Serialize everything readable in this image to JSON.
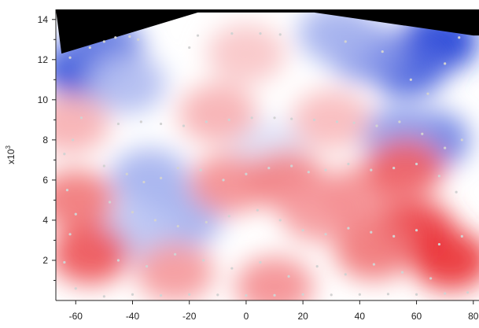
{
  "chart_data": {
    "type": "heatmap",
    "subtype": "interpolated contour map with scattered sample points",
    "title": "",
    "xlabel": "",
    "ylabel": "x10^3",
    "ylabel_parts": {
      "base": "x10",
      "exponent": "3"
    },
    "xlim": [
      -67,
      82
    ],
    "ylim": [
      0,
      14500
    ],
    "x_ticks": [
      -60,
      -40,
      -20,
      0,
      20,
      40,
      60,
      80
    ],
    "x_tick_labels": [
      "-60",
      "-40",
      "-20",
      "0",
      "20",
      "40",
      "60",
      "80"
    ],
    "y_ticks": [
      2000,
      4000,
      6000,
      8000,
      10000,
      12000,
      14000
    ],
    "y_tick_labels": [
      "2",
      "4",
      "6",
      "8",
      "10",
      "12",
      "14"
    ],
    "grid": false,
    "legend": "none",
    "colorscale": {
      "negative": "#1f3fd6",
      "zero": "#ffffff",
      "positive": "#e81c22"
    },
    "mask_color": "#000000",
    "mask_outside_hull": [
      [
        -65,
        12300
      ],
      [
        -17,
        14350
      ],
      [
        24,
        14350
      ],
      [
        80,
        13200
      ]
    ],
    "field_centers": [
      {
        "x": -58,
        "y": 11500,
        "value": -0.9
      },
      {
        "x": -50,
        "y": 12600,
        "value": -0.7
      },
      {
        "x": -42,
        "y": 10800,
        "value": -0.35
      },
      {
        "x": 68,
        "y": 12900,
        "value": -1.0
      },
      {
        "x": 57,
        "y": 11600,
        "value": -0.8
      },
      {
        "x": 42,
        "y": 12400,
        "value": -0.55
      },
      {
        "x": 32,
        "y": 13300,
        "value": -0.4
      },
      {
        "x": 65,
        "y": 8000,
        "value": -0.65
      },
      {
        "x": 54,
        "y": 8200,
        "value": -0.5
      },
      {
        "x": -34,
        "y": 6100,
        "value": -0.4
      },
      {
        "x": -22,
        "y": 4100,
        "value": -0.4
      },
      {
        "x": -38,
        "y": 3400,
        "value": -0.3
      },
      {
        "x": 8,
        "y": 7500,
        "value": -0.15
      },
      {
        "x": -62,
        "y": 8800,
        "value": 0.35
      },
      {
        "x": -60,
        "y": 5000,
        "value": 0.6
      },
      {
        "x": -55,
        "y": 2300,
        "value": 0.75
      },
      {
        "x": -25,
        "y": 1400,
        "value": 0.45
      },
      {
        "x": 0,
        "y": 12300,
        "value": 0.25
      },
      {
        "x": -6,
        "y": 5800,
        "value": 0.5
      },
      {
        "x": 14,
        "y": 6000,
        "value": 0.55
      },
      {
        "x": 26,
        "y": 4400,
        "value": 0.45
      },
      {
        "x": 40,
        "y": 5200,
        "value": 0.5
      },
      {
        "x": 56,
        "y": 6600,
        "value": 0.7
      },
      {
        "x": 60,
        "y": 3500,
        "value": 0.85
      },
      {
        "x": 72,
        "y": 2000,
        "value": 0.9
      },
      {
        "x": 45,
        "y": 2500,
        "value": 0.6
      },
      {
        "x": 10,
        "y": 700,
        "value": 0.5
      },
      {
        "x": 30,
        "y": 9000,
        "value": 0.3
      },
      {
        "x": -10,
        "y": 9300,
        "value": 0.35
      }
    ],
    "sample_points": {
      "marker_color": "#d2d2d2",
      "points": [
        [
          -62,
          12100
        ],
        [
          -55,
          12600
        ],
        [
          -50,
          12900
        ],
        [
          -46,
          13100
        ],
        [
          -41,
          13150
        ],
        [
          -38,
          13000
        ],
        [
          -58,
          9100
        ],
        [
          -61,
          8000
        ],
        [
          -64,
          7300
        ],
        [
          -63,
          5500
        ],
        [
          -60,
          4300
        ],
        [
          -62,
          3300
        ],
        [
          -64,
          1900
        ],
        [
          -60,
          600
        ],
        [
          -50,
          200
        ],
        [
          -40,
          300
        ],
        [
          -30,
          250
        ],
        [
          -20,
          300
        ],
        [
          -10,
          280
        ],
        [
          0,
          250
        ],
        [
          10,
          260
        ],
        [
          20,
          300
        ],
        [
          30,
          280
        ],
        [
          40,
          300
        ],
        [
          50,
          320
        ],
        [
          60,
          300
        ],
        [
          70,
          350
        ],
        [
          78,
          400
        ],
        [
          -45,
          8800
        ],
        [
          -37,
          8900
        ],
        [
          -30,
          8800
        ],
        [
          -22,
          8700
        ],
        [
          -14,
          8900
        ],
        [
          -6,
          9000
        ],
        [
          2,
          9100
        ],
        [
          10,
          9100
        ],
        [
          16,
          9050
        ],
        [
          24,
          9000
        ],
        [
          32,
          8900
        ],
        [
          38,
          8850
        ],
        [
          46,
          8700
        ],
        [
          54,
          8900
        ],
        [
          62,
          8300
        ],
        [
          70,
          7600
        ],
        [
          76,
          8000
        ],
        [
          -50,
          6700
        ],
        [
          -42,
          6300
        ],
        [
          -36,
          5900
        ],
        [
          -30,
          6100
        ],
        [
          -24,
          6600
        ],
        [
          -16,
          6500
        ],
        [
          -8,
          6000
        ],
        [
          0,
          6300
        ],
        [
          8,
          6600
        ],
        [
          16,
          6700
        ],
        [
          22,
          6400
        ],
        [
          28,
          6500
        ],
        [
          36,
          6800
        ],
        [
          44,
          6500
        ],
        [
          52,
          6600
        ],
        [
          60,
          6800
        ],
        [
          68,
          6200
        ],
        [
          74,
          5400
        ],
        [
          -48,
          4900
        ],
        [
          -40,
          4400
        ],
        [
          -32,
          4000
        ],
        [
          -24,
          3700
        ],
        [
          -14,
          3900
        ],
        [
          -6,
          4200
        ],
        [
          4,
          4500
        ],
        [
          12,
          4000
        ],
        [
          20,
          3500
        ],
        [
          28,
          3300
        ],
        [
          36,
          3600
        ],
        [
          44,
          3400
        ],
        [
          52,
          3200
        ],
        [
          60,
          3500
        ],
        [
          68,
          2800
        ],
        [
          76,
          3200
        ],
        [
          -45,
          2000
        ],
        [
          -35,
          1700
        ],
        [
          -25,
          2300
        ],
        [
          -15,
          2000
        ],
        [
          -5,
          1600
        ],
        [
          5,
          1900
        ],
        [
          15,
          1200
        ],
        [
          25,
          1700
        ],
        [
          35,
          1300
        ],
        [
          45,
          1800
        ],
        [
          55,
          1400
        ],
        [
          65,
          1100
        ],
        [
          -5,
          13300
        ],
        [
          5,
          13300
        ],
        [
          12,
          13250
        ],
        [
          -17,
          13200
        ],
        [
          -20,
          12600
        ],
        [
          35,
          12900
        ],
        [
          48,
          12400
        ],
        [
          58,
          11000
        ],
        [
          64,
          10300
        ],
        [
          70,
          11800
        ],
        [
          75,
          13100
        ]
      ]
    }
  }
}
